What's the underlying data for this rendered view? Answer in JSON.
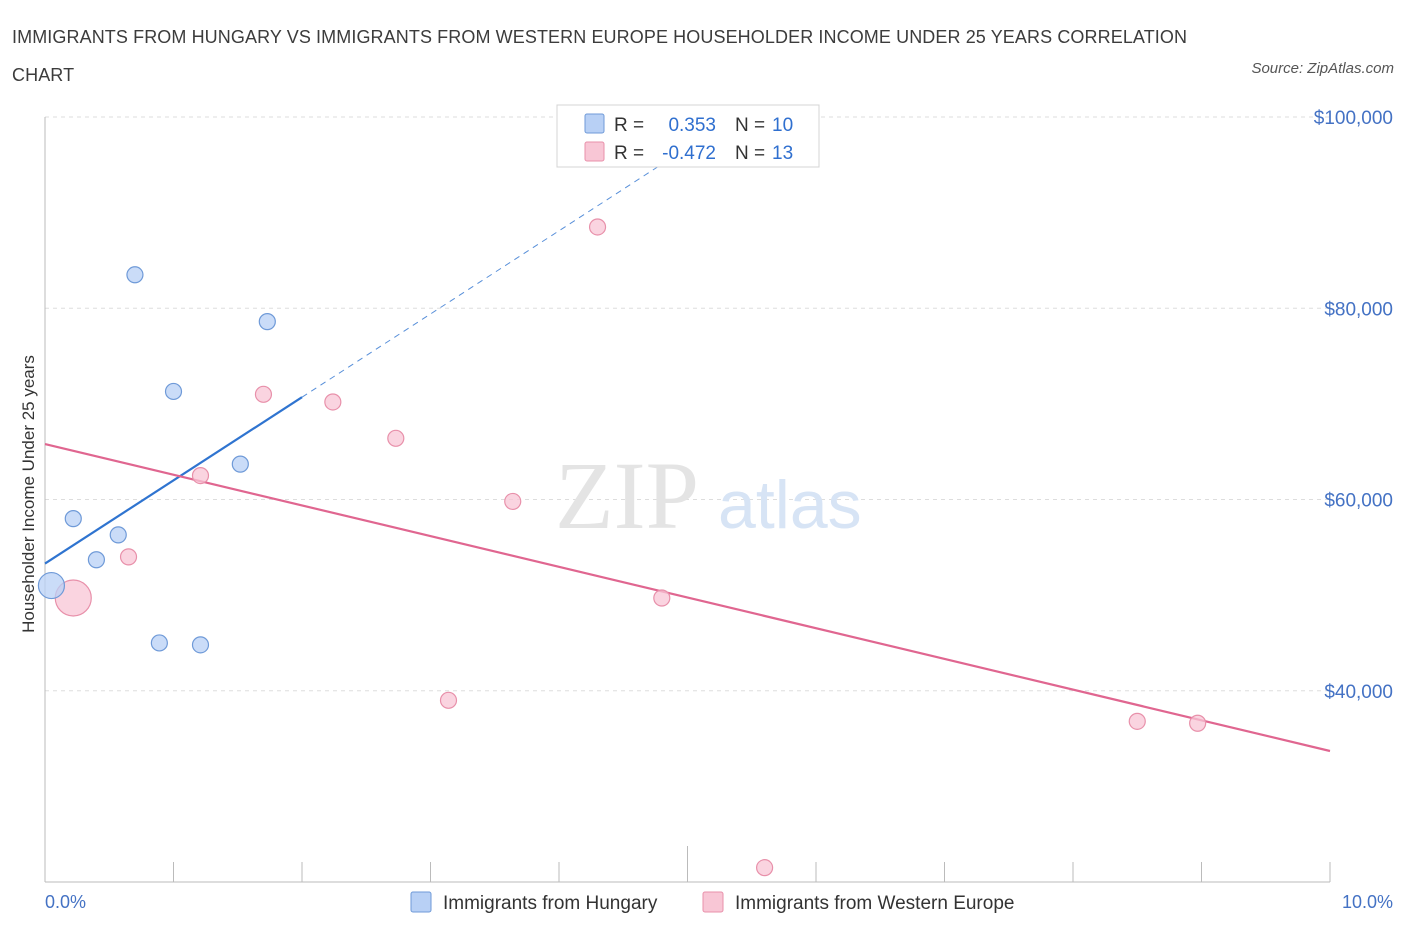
{
  "title": "IMMIGRANTS FROM HUNGARY VS IMMIGRANTS FROM WESTERN EUROPE HOUSEHOLDER INCOME UNDER 25 YEARS CORRELATION CHART",
  "source": "Source: ZipAtlas.com",
  "watermark": {
    "zip": "ZIP",
    "atlas": "atlas"
  },
  "colors": {
    "hungary_fill": "#b8d0f5",
    "hungary_stroke": "#6f9ad8",
    "hungary_line": "#2f74d0",
    "weurope_fill": "#f8c6d5",
    "weurope_stroke": "#e890aa",
    "weurope_line": "#e06690",
    "grid": "#dddddd",
    "axis_text": "#4472c4"
  },
  "legend": {
    "rows": [
      {
        "r_label": "R =",
        "r_value": "0.353",
        "n_label": "N =",
        "n_value": "10"
      },
      {
        "r_label": "R =",
        "r_value": "-0.472",
        "n_label": "N =",
        "n_value": "13"
      }
    ]
  },
  "chart_data": {
    "type": "scatter",
    "title": "IMMIGRANTS FROM HUNGARY VS IMMIGRANTS FROM WESTERN EUROPE HOUSEHOLDER INCOME UNDER 25 YEARS CORRELATION CHART",
    "xlabel": "",
    "ylabel": "Householder Income Under 25 years",
    "xlim": [
      0,
      10
    ],
    "ylim": [
      20000,
      100000
    ],
    "x_tick_labels": [
      "0.0%",
      "10.0%"
    ],
    "y_ticks": [
      40000,
      60000,
      80000,
      100000
    ],
    "y_tick_labels": [
      "$40,000",
      "$60,000",
      "$80,000",
      "$100,000"
    ],
    "grid": true,
    "series": [
      {
        "name": "Immigrants from Hungary",
        "points": [
          {
            "x": 0.05,
            "y": 51000,
            "size": "large"
          },
          {
            "x": 0.22,
            "y": 58000,
            "size": "normal"
          },
          {
            "x": 0.4,
            "y": 53700,
            "size": "normal"
          },
          {
            "x": 0.57,
            "y": 56300,
            "size": "normal"
          },
          {
            "x": 0.7,
            "y": 83500,
            "size": "normal"
          },
          {
            "x": 0.89,
            "y": 45000,
            "size": "normal"
          },
          {
            "x": 1.0,
            "y": 71300,
            "size": "normal"
          },
          {
            "x": 1.21,
            "y": 44800,
            "size": "normal"
          },
          {
            "x": 1.52,
            "y": 63700,
            "size": "normal"
          },
          {
            "x": 1.73,
            "y": 78600,
            "size": "normal"
          }
        ],
        "trend": {
          "x0": 0.0,
          "y0": 53300,
          "x1": 2.0,
          "y1": 70700,
          "dashed_to_x": 5.0,
          "dashed_to_y": 96800
        }
      },
      {
        "name": "Immigrants from Western Europe",
        "points": [
          {
            "x": 0.22,
            "y": 49700,
            "size": "xlarge"
          },
          {
            "x": 0.65,
            "y": 54000,
            "size": "normal"
          },
          {
            "x": 1.21,
            "y": 62500,
            "size": "normal"
          },
          {
            "x": 1.7,
            "y": 71000,
            "size": "normal"
          },
          {
            "x": 2.24,
            "y": 70200,
            "size": "normal"
          },
          {
            "x": 2.73,
            "y": 66400,
            "size": "normal"
          },
          {
            "x": 3.14,
            "y": 39000,
            "size": "normal"
          },
          {
            "x": 3.64,
            "y": 59800,
            "size": "normal"
          },
          {
            "x": 4.3,
            "y": 88500,
            "size": "normal"
          },
          {
            "x": 4.8,
            "y": 49700,
            "size": "normal"
          },
          {
            "x": 5.6,
            "y": 21500,
            "size": "normal"
          },
          {
            "x": 8.5,
            "y": 36800,
            "size": "normal"
          },
          {
            "x": 8.97,
            "y": 36600,
            "size": "normal"
          }
        ],
        "trend": {
          "x0": 0.0,
          "y0": 65800,
          "x1": 10.0,
          "y1": 33700
        }
      }
    ]
  }
}
